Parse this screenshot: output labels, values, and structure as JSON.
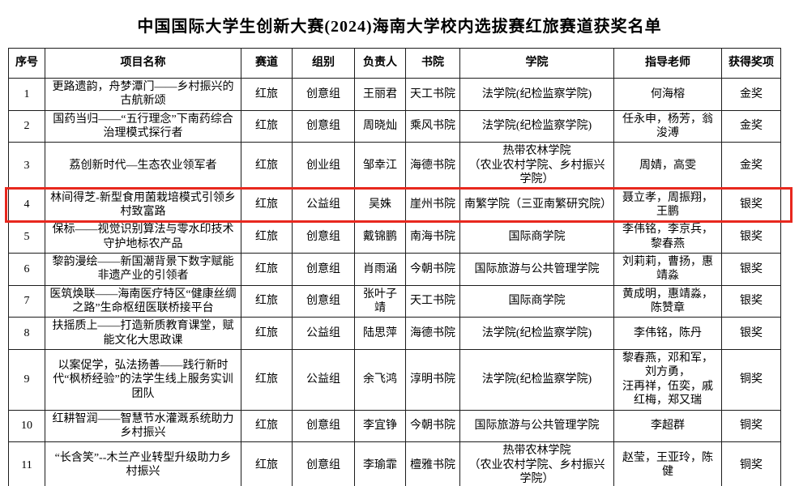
{
  "title": "中国国际大学生创新大赛(2024)海南大学校内选拔赛红旅赛道获奖名单",
  "highlight_color": "#e8281e",
  "table": {
    "headers": [
      "序号",
      "项目名称",
      "赛道",
      "组别",
      "负责人",
      "书院",
      "学院",
      "指导老师",
      "获得奖项"
    ],
    "column_keys": [
      "no",
      "project",
      "track",
      "group",
      "leader",
      "college",
      "school",
      "advisors",
      "award"
    ],
    "rows": [
      {
        "no": "1",
        "project": "更路遗韵，舟梦潭门——乡村振兴的古航新颂",
        "track": "红旅",
        "group": "创意组",
        "leader": "王丽君",
        "college": "天工书院",
        "school": "法学院(纪检监察学院)",
        "advisors": "何海榕",
        "award": "金奖",
        "highlight": false
      },
      {
        "no": "2",
        "project": "国药当归——“五行理念”下南药综合治理模式探行者",
        "track": "红旅",
        "group": "创意组",
        "leader": "周晓灿",
        "college": "乘风书院",
        "school": "法学院(纪检监察学院)",
        "advisors": "任永申，杨芳，翁浚溥",
        "award": "金奖",
        "highlight": false
      },
      {
        "no": "3",
        "project": "荔创新时代—生态农业领军者",
        "track": "红旅",
        "group": "创业组",
        "leader": "邹幸江",
        "college": "海德书院",
        "school": "热带农林学院\n（农业农村学院、乡村振兴学院）",
        "advisors": "周婧，高雯",
        "award": "金奖",
        "highlight": false
      },
      {
        "no": "4",
        "project": "林间得芝-新型食用菌栽培模式引领乡村致富路",
        "track": "红旅",
        "group": "公益组",
        "leader": "吴姝",
        "college": "崖州书院",
        "school": "南繁学院（三亚南繁研究院）",
        "advisors": "聂立孝，周振翔，王鹏",
        "award": "银奖",
        "highlight": true
      },
      {
        "no": "5",
        "project": "保标——视觉识别算法与零水印技术守护地标农产品",
        "track": "红旅",
        "group": "创意组",
        "leader": "戴锦鹏",
        "college": "南海书院",
        "school": "国际商学院",
        "advisors": "李伟铭，李京兵，黎春燕",
        "award": "银奖",
        "highlight": false
      },
      {
        "no": "6",
        "project": "黎韵漫绘——新国潮背景下数字赋能非遗产业的引领者",
        "track": "红旅",
        "group": "创意组",
        "leader": "肖雨涵",
        "college": "今朝书院",
        "school": "国际旅游与公共管理学院",
        "advisors": "刘莉莉，曹扬，惠靖淼",
        "award": "银奖",
        "highlight": false
      },
      {
        "no": "7",
        "project": "医筑焕联——海南医疗特区“健康丝绸之路”生命枢纽医联桥接平台",
        "track": "红旅",
        "group": "创意组",
        "leader": "张叶子靖",
        "college": "天工书院",
        "school": "国际商学院",
        "advisors": "黄成明，惠靖淼，陈赞章",
        "award": "银奖",
        "highlight": false
      },
      {
        "no": "8",
        "project": "扶摇质上——打造新质教育课堂，赋能文化大思政课",
        "track": "红旅",
        "group": "公益组",
        "leader": "陆思萍",
        "college": "海德书院",
        "school": "法学院(纪检监察学院)",
        "advisors": "李伟铭，陈丹",
        "award": "银奖",
        "highlight": false
      },
      {
        "no": "9",
        "project": "以案促学，弘法扬善——践行新时代“枫桥经验”的法学生线上服务实训团队",
        "track": "红旅",
        "group": "公益组",
        "leader": "余飞鸿",
        "college": "淳明书院",
        "school": "法学院(纪检监察学院)",
        "advisors": "黎春燕，邓和军，刘方勇，\n汪再祥，伍奕，戚红梅，郑又瑞",
        "award": "铜奖",
        "highlight": false
      },
      {
        "no": "10",
        "project": "红耕智润——智慧节水灌溉系统助力乡村振兴",
        "track": "红旅",
        "group": "创意组",
        "leader": "李宜铮",
        "college": "今朝书院",
        "school": "国际旅游与公共管理学院",
        "advisors": "李超群",
        "award": "铜奖",
        "highlight": false
      },
      {
        "no": "11",
        "project": "“长含笑”--木兰产业转型升级助力乡村振兴",
        "track": "红旅",
        "group": "创意组",
        "leader": "李瑜霏",
        "college": "檀雅书院",
        "school": "热带农林学院\n（农业农村学院、乡村振兴学院）",
        "advisors": "赵莹，王亚玲，陈健",
        "award": "铜奖",
        "highlight": false
      }
    ]
  }
}
